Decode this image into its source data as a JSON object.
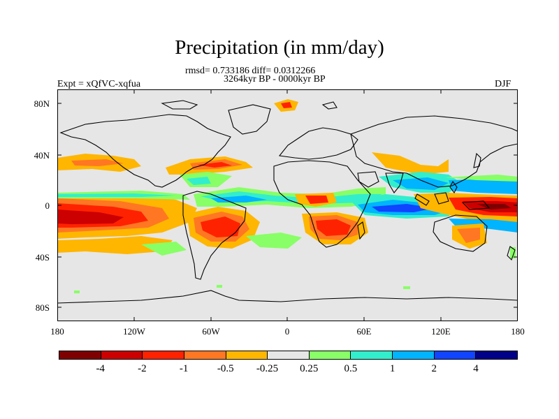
{
  "title": "Precipitation (in mm/day)",
  "stats_line": "rmsd= 0.733186 diff= 0.0312266",
  "period_line": "3264kyr BP - 0000kyr BP",
  "experiment": "Expt = xQfVC-xqfua",
  "season": "DJF",
  "lat_labels": [
    "80N",
    "40N",
    "0",
    "40S",
    "80S"
  ],
  "lon_labels": [
    "180",
    "120W",
    "60W",
    "0",
    "60E",
    "120E",
    "180"
  ],
  "colorbar": {
    "colors": [
      "#7f0000",
      "#cc0000",
      "#ff2200",
      "#ff7722",
      "#ffb600",
      "#e6e6e6",
      "#88ff66",
      "#33eecc",
      "#00b4ff",
      "#1144ff",
      "#000088"
    ],
    "labels": [
      "-4",
      "-2",
      "-1",
      "-0.5",
      "-0.25",
      "0.25",
      "0.5",
      "1",
      "2",
      "4"
    ]
  },
  "colors": {
    "land_ocean_bg": "#e6e6e6",
    "coastline": "#000000"
  }
}
